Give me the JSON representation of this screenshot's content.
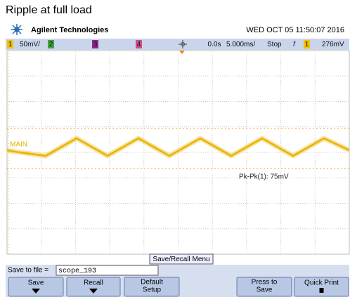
{
  "title": "Ripple at full load",
  "header": {
    "brand": "Agilent Technologies",
    "datetime": "WED OCT 05 11:50:07 2016"
  },
  "status": {
    "ch1": "1",
    "ch1_scale": "50mV/",
    "ch2": "2",
    "ch3": "3",
    "ch4": "4",
    "delay": "0.0s",
    "timebase": "5.000ms/",
    "run_state": "Stop",
    "trigger_slope": "f",
    "trigger_source": "1",
    "trigger_level": "276mV"
  },
  "screen": {
    "timebase_label": "MAIN",
    "measurement": "Pk-Pk(1): 75mV",
    "menu_title": "Save/Recall Menu"
  },
  "file": {
    "label": "Save to file = ",
    "name": "scope_193"
  },
  "softkeys": [
    {
      "lines": [
        "Save"
      ]
    },
    {
      "lines": [
        "Recall"
      ]
    },
    {
      "lines": [
        "Default",
        "Setup"
      ]
    },
    {
      "lines": [
        "Press to",
        "Save"
      ]
    },
    {
      "lines": [
        "Quick Print"
      ]
    }
  ]
}
